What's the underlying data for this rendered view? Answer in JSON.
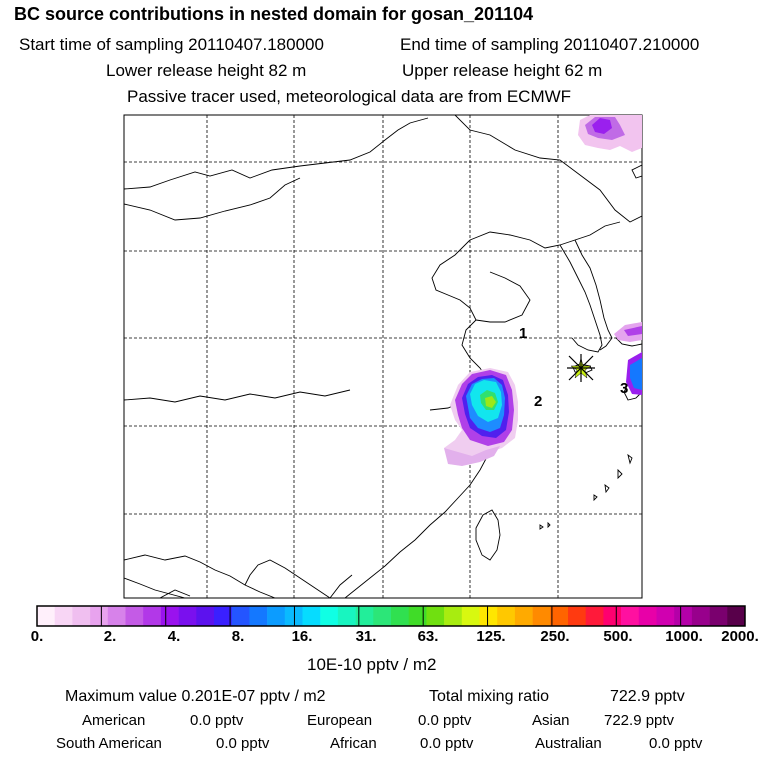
{
  "header": {
    "title": "BC  source contributions in nested domain for gosan_201104",
    "start_label": "Start time of sampling 20110407.180000",
    "end_label": "End time of sampling 20110407.210000",
    "lower_label": "Lower release height   82 m",
    "upper_label": "Upper release height   62 m",
    "tracer_label": "Passive tracer used, meteorological data are from ECMWF"
  },
  "map": {
    "region_labels": [
      "1",
      "2",
      "3"
    ]
  },
  "colorbar": {
    "tick_labels": [
      "0.",
      "2.",
      "4.",
      "8.",
      "16.",
      "31.",
      "63.",
      "125.",
      "250.",
      "500.",
      "1000.",
      "2000."
    ],
    "unit": "10E-10 pptv / m2",
    "colors": [
      "#fff0fb",
      "#f8d6f5",
      "#f0bff0",
      "#e8a3ee",
      "#d782ea",
      "#c45be6",
      "#b238e8",
      "#9a12ee",
      "#7a10ee",
      "#5c12ee",
      "#3a20ff",
      "#2455ff",
      "#1478ff",
      "#0c9cff",
      "#0abaff",
      "#06dcff",
      "#10ffe4",
      "#18f5c0",
      "#22ee9a",
      "#2ce678",
      "#30e050",
      "#40dc28",
      "#70e010",
      "#a8ec10",
      "#d8f810",
      "#ffe600",
      "#ffc800",
      "#ffaa00",
      "#ff8a00",
      "#ff6400",
      "#ff3a10",
      "#ff1a3a",
      "#ff0070",
      "#ff10a0",
      "#e800a8",
      "#d000b0",
      "#b400a8",
      "#98008c",
      "#7a006e",
      "#58004a"
    ]
  },
  "stats": {
    "max_label": "Maximum value  0.201E-07 pptv / m2",
    "total_label": "Total mixing ratio",
    "total_value": "722.9 pptv",
    "american_label": "American",
    "american_value": "0.0 pptv",
    "european_label": "European",
    "european_value": "0.0 pptv",
    "asian_label": "Asian",
    "asian_value": "722.9 pptv",
    "south_american_label": "South American",
    "south_american_value": "0.0 pptv",
    "african_label": "African",
    "african_value": "0.0 pptv",
    "australian_label": "Australian",
    "australian_value": "0.0 pptv"
  }
}
